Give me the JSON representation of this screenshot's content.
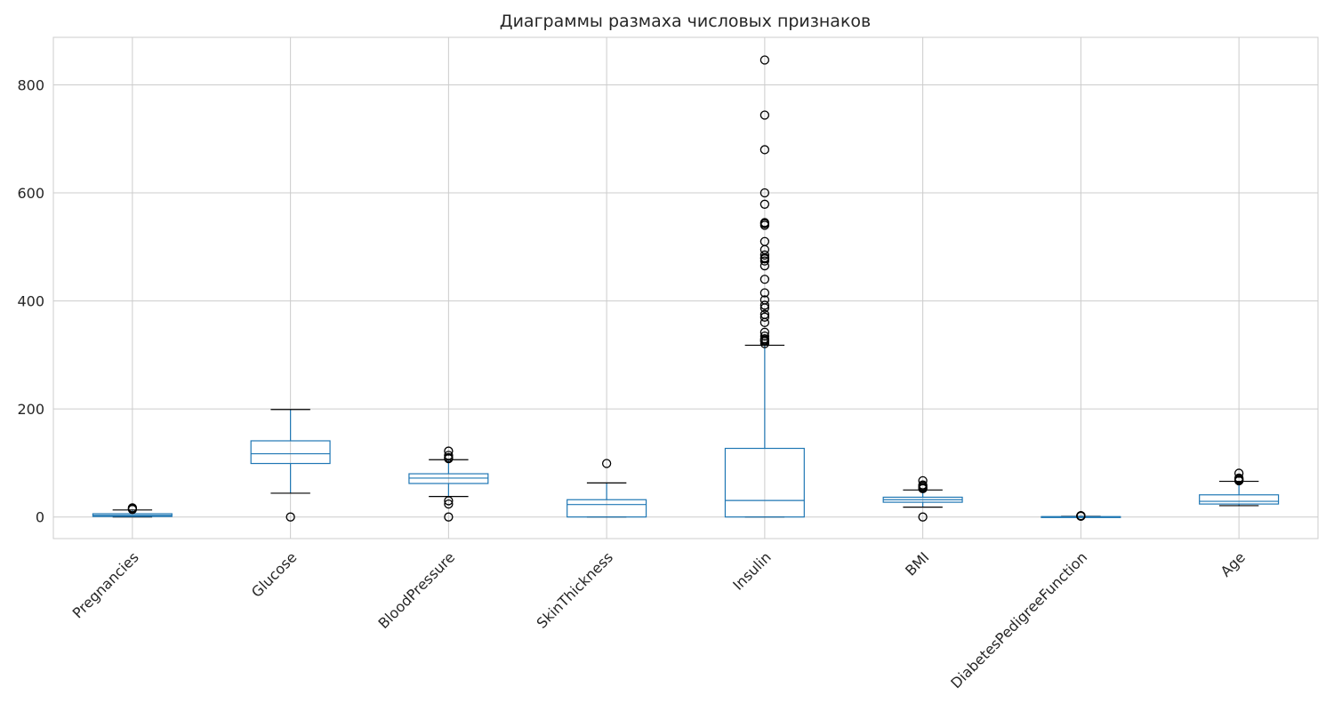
{
  "chart_data": {
    "type": "boxplot",
    "title": "Диаграммы размаха числовых признаков",
    "xlabel": "",
    "ylabel": "",
    "ylim": [
      -40,
      888
    ],
    "yticks": [
      0,
      200,
      400,
      600,
      800
    ],
    "grid": true,
    "colors": {
      "box": "#1f77b4",
      "whisker": "#1f77b4",
      "cap": "#000000",
      "flier": "#000000",
      "grid": "#cccccc",
      "frame": "#cccccc"
    },
    "categories": [
      "Pregnancies",
      "Glucose",
      "BloodPressure",
      "SkinThickness",
      "Insulin",
      "BMI",
      "DiabetesPedigreeFunction",
      "Age"
    ],
    "boxes": [
      {
        "name": "Pregnancies",
        "whisker_low": 0,
        "q1": 1,
        "median": 3,
        "q3": 6,
        "whisker_high": 13,
        "fliers": [
          14,
          15,
          17
        ]
      },
      {
        "name": "Glucose",
        "whisker_low": 44,
        "q1": 99,
        "median": 117,
        "q3": 141,
        "whisker_high": 199,
        "fliers": [
          0
        ]
      },
      {
        "name": "BloodPressure",
        "whisker_low": 38,
        "q1": 62,
        "median": 72,
        "q3": 80,
        "whisker_high": 106,
        "fliers": [
          0,
          24,
          30,
          108,
          110,
          114,
          122
        ]
      },
      {
        "name": "SkinThickness",
        "whisker_low": 0,
        "q1": 0,
        "median": 23,
        "q3": 32,
        "whisker_high": 63,
        "fliers": [
          99
        ]
      },
      {
        "name": "Insulin",
        "whisker_low": 0,
        "q1": 0,
        "median": 30.5,
        "q3": 127,
        "whisker_high": 318,
        "fliers": [
          321,
          325,
          326,
          328,
          330,
          335,
          342,
          360,
          370,
          375,
          387,
          392,
          402,
          415,
          440,
          465,
          474,
          478,
          480,
          485,
          495,
          510,
          540,
          543,
          545,
          579,
          600,
          680,
          744,
          846
        ]
      },
      {
        "name": "BMI",
        "whisker_low": 18.2,
        "q1": 27.3,
        "median": 32,
        "q3": 36.6,
        "whisker_high": 50,
        "fliers": [
          0,
          52.3,
          53.2,
          55,
          57.3,
          59.4,
          67.1
        ]
      },
      {
        "name": "DiabetesPedigreeFunction",
        "whisker_low": 0.078,
        "q1": 0.24,
        "median": 0.37,
        "q3": 0.63,
        "whisker_high": 1.19,
        "fliers": [
          1.3,
          1.6,
          1.9,
          2.1,
          2.3,
          2.42
        ]
      },
      {
        "name": "Age",
        "whisker_low": 21,
        "q1": 24,
        "median": 29,
        "q3": 41,
        "whisker_high": 66,
        "fliers": [
          67,
          68,
          69,
          70,
          72,
          81
        ]
      }
    ]
  }
}
